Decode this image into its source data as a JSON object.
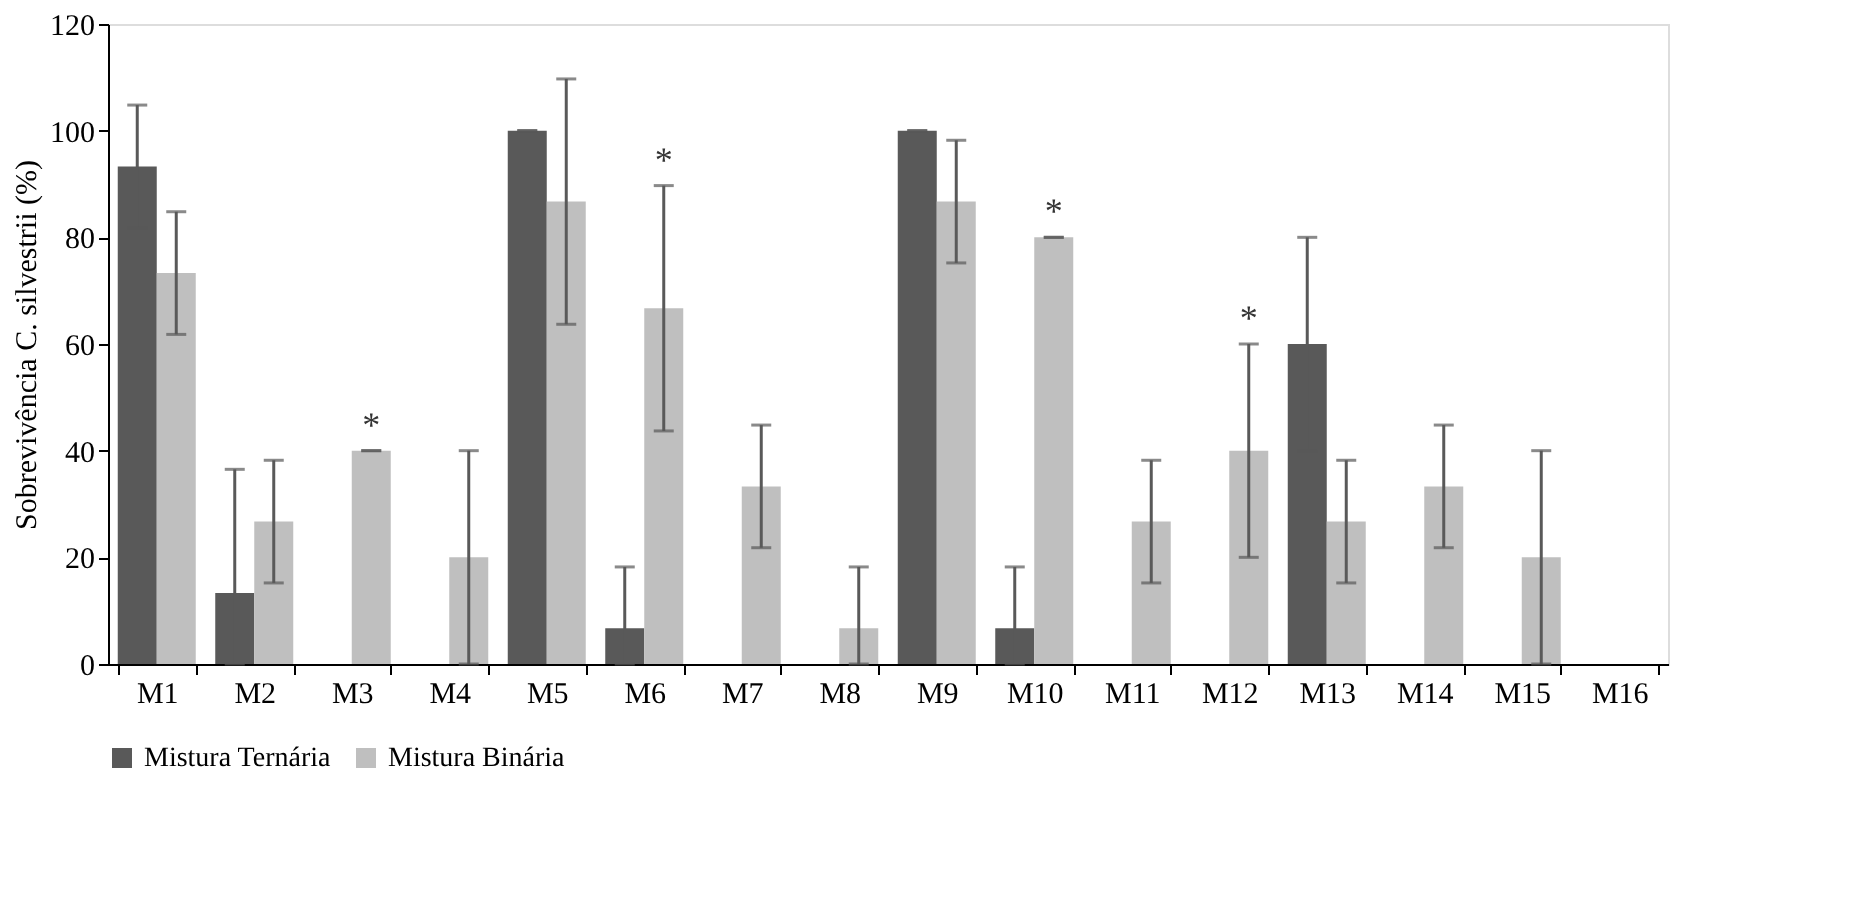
{
  "chart_data": {
    "type": "bar",
    "ylabel": "Sobrevivência C. silvestrii (%)",
    "categories": [
      "M1",
      "M2",
      "M3",
      "M4",
      "M5",
      "M6",
      "M7",
      "M8",
      "M9",
      "M10",
      "M11",
      "M12",
      "M13",
      "M14",
      "M15",
      "M16"
    ],
    "series": [
      {
        "name": "Mistura Ternária",
        "color": "#595959",
        "values": [
          93.3,
          13.3,
          0,
          0,
          100,
          6.7,
          0,
          0,
          100,
          6.7,
          0,
          0,
          60,
          0,
          0,
          0
        ],
        "errors": [
          11.5,
          [
            0,
            36.5
          ],
          null,
          null,
          0,
          [
            0,
            18.2
          ],
          null,
          null,
          0,
          [
            0,
            18.2
          ],
          null,
          null,
          20,
          null,
          null,
          null
        ]
      },
      {
        "name": "Mistura Binária",
        "color": "#bfbfbf",
        "values": [
          73.3,
          26.7,
          40,
          20,
          86.7,
          66.7,
          33.3,
          6.7,
          86.7,
          80,
          26.7,
          40,
          26.7,
          33.3,
          20,
          0
        ],
        "errors": [
          11.5,
          11.5,
          0,
          20,
          23,
          23,
          11.5,
          [
            0,
            18.2
          ],
          11.5,
          0,
          11.5,
          20,
          11.5,
          11.5,
          20,
          null
        ]
      }
    ],
    "annotations": [
      {
        "text": "*",
        "x": "M3",
        "y": 40
      },
      {
        "text": "*",
        "x": "M6",
        "y": 89.7
      },
      {
        "text": "*",
        "x": "M10",
        "y": 80
      },
      {
        "text": "*",
        "x": "M12",
        "y": 60
      }
    ],
    "ylim": [
      0,
      120
    ],
    "yticks": [
      0,
      20,
      40,
      60,
      80,
      100,
      120
    ],
    "grid": false,
    "legend": "bottom"
  }
}
